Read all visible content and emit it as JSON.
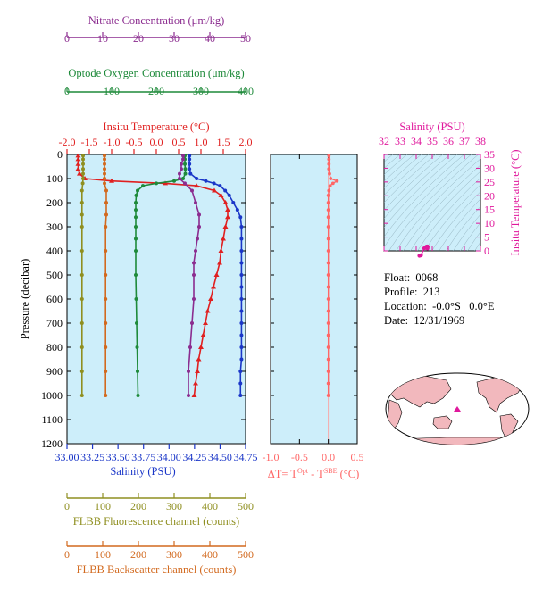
{
  "chart_data": [
    {
      "type": "line",
      "panel": "main-profile",
      "ylabel": "Pressure (decibar)",
      "ylim": [
        1200,
        0
      ],
      "yticks": [
        0,
        100,
        200,
        300,
        400,
        500,
        600,
        700,
        800,
        900,
        1000,
        1100,
        1200
      ],
      "grid": false,
      "axes": {
        "nitrate": {
          "title": "Nitrate Concentration (μm/kg)",
          "lim": [
            0,
            50
          ],
          "ticks": [
            0,
            10,
            20,
            30,
            40,
            50
          ],
          "color": "#8b2c8f"
        },
        "oxygen": {
          "title": "Optode Oxygen Concentration (μm/kg)",
          "lim": [
            0,
            400
          ],
          "ticks": [
            0,
            100,
            200,
            300,
            400
          ],
          "color": "#1e8a3a"
        },
        "temperature": {
          "title": "Insitu Temperature (°C)",
          "lim": [
            -2,
            2
          ],
          "ticks": [
            "-2.0",
            "-1.5",
            "-1.0",
            "-0.5",
            "0.0",
            "0.5",
            "1.0",
            "1.5",
            "2.0"
          ],
          "color": "#e02020"
        },
        "salinity": {
          "title": "Salinity (PSU)",
          "lim": [
            33,
            34.75
          ],
          "ticks": [
            "33.00",
            "33.25",
            "33.50",
            "33.75",
            "34.00",
            "34.25",
            "34.50",
            "34.75"
          ],
          "color": "#1a36c8"
        },
        "fluorescence": {
          "title": "FLBB Fluorescence channel (counts)",
          "lim": [
            0,
            500
          ],
          "ticks": [
            0,
            100,
            200,
            300,
            400,
            500
          ],
          "color": "#8f8f20"
        },
        "backscatter": {
          "title": "FLBB Backscatter channel (counts)",
          "lim": [
            0,
            500
          ],
          "ticks": [
            0,
            100,
            200,
            300,
            400,
            500
          ],
          "color": "#d2691e"
        }
      },
      "series": [
        {
          "axis": "temperature",
          "marker": "triangle",
          "p": [
            5,
            20,
            40,
            60,
            80,
            100,
            110,
            120,
            130,
            150,
            170,
            200,
            230,
            260,
            300,
            350,
            400,
            450,
            500,
            550,
            600,
            650,
            700,
            750,
            800,
            850,
            900,
            950,
            1000
          ],
          "v": [
            -1.75,
            -1.75,
            -1.75,
            -1.75,
            -1.72,
            -1.6,
            -1.0,
            0.2,
            0.9,
            1.3,
            1.45,
            1.55,
            1.6,
            1.6,
            1.55,
            1.5,
            1.45,
            1.42,
            1.35,
            1.28,
            1.22,
            1.15,
            1.1,
            1.05,
            1.0,
            0.95,
            0.92,
            0.88,
            0.85
          ]
        },
        {
          "axis": "salinity",
          "marker": "dot",
          "p": [
            5,
            20,
            40,
            60,
            80,
            100,
            110,
            120,
            130,
            150,
            170,
            200,
            230,
            260,
            300,
            350,
            400,
            450,
            500,
            550,
            600,
            650,
            700,
            750,
            800,
            850,
            900,
            950,
            1000
          ],
          "v": [
            34.2,
            34.2,
            34.2,
            34.2,
            34.21,
            34.27,
            34.36,
            34.44,
            34.5,
            34.55,
            34.59,
            34.63,
            34.67,
            34.7,
            34.71,
            34.71,
            34.71,
            34.71,
            34.71,
            34.71,
            34.71,
            34.71,
            34.71,
            34.71,
            34.71,
            34.71,
            34.7,
            34.7,
            34.7
          ]
        },
        {
          "axis": "oxygen",
          "marker": "dot",
          "p": [
            5,
            20,
            40,
            60,
            80,
            100,
            110,
            120,
            130,
            150,
            170,
            200,
            230,
            260,
            300,
            350,
            400,
            500,
            600,
            700,
            800,
            900,
            1000
          ],
          "v": [
            264,
            264,
            264,
            265,
            265,
            260,
            240,
            200,
            170,
            158,
            155,
            154,
            154,
            154,
            154,
            154,
            154,
            154,
            155,
            156,
            157,
            158,
            159
          ]
        },
        {
          "axis": "nitrate",
          "marker": "dot",
          "p": [
            5,
            20,
            40,
            60,
            80,
            100,
            120,
            150,
            200,
            250,
            300,
            350,
            400,
            450,
            500,
            600,
            700,
            800,
            900,
            1000
          ],
          "v": [
            32.5,
            32.5,
            32,
            32,
            31.5,
            31.5,
            33,
            35,
            36,
            37,
            37,
            36.5,
            36,
            35.5,
            35.5,
            35.5,
            35,
            34.5,
            34,
            34
          ]
        },
        {
          "axis": "fluorescence",
          "marker": "dot",
          "p": [
            5,
            20,
            40,
            60,
            80,
            100,
            120,
            150,
            200,
            250,
            300,
            400,
            500,
            600,
            700,
            800,
            900,
            1000
          ],
          "v": [
            45,
            45,
            45,
            45,
            45,
            45,
            44,
            42,
            42,
            42,
            42,
            42,
            42,
            42,
            42,
            42,
            42,
            42
          ]
        },
        {
          "axis": "backscatter",
          "marker": "dot",
          "p": [
            5,
            20,
            40,
            60,
            80,
            100,
            120,
            150,
            200,
            250,
            300,
            400,
            500,
            600,
            700,
            800,
            900,
            1000
          ],
          "v": [
            105,
            105,
            105,
            105,
            105,
            105,
            105,
            110,
            110,
            110,
            108,
            108,
            108,
            108,
            108,
            108,
            108,
            108
          ]
        }
      ]
    },
    {
      "type": "line",
      "panel": "delta-t",
      "xlabel": "ΔT= T",
      "xlabel_sup1": "Opt",
      "xlabel_mid": " - T",
      "xlabel_sup2": "SBE",
      "xlabel_end": " (°C)",
      "xlim": [
        -1.0,
        0.5
      ],
      "xticks": [
        "-1.0",
        "-0.5",
        "0.0",
        "0.5"
      ],
      "ylim": [
        1200,
        0
      ],
      "color": "#ff6666",
      "series": [
        {
          "p": [
            5,
            20,
            40,
            60,
            80,
            100,
            110,
            120,
            130,
            150,
            170,
            200,
            230,
            260,
            300,
            350,
            400,
            450,
            500,
            550,
            600,
            650,
            700,
            750,
            800,
            850,
            900,
            950,
            1000
          ],
          "v": [
            0.01,
            0.01,
            0.01,
            0.01,
            0.02,
            0.04,
            0.15,
            0.08,
            0.03,
            0.01,
            0.0,
            0.0,
            0.0,
            0.0,
            0.0,
            0.0,
            0.0,
            0.0,
            0.0,
            0.0,
            0.0,
            0.0,
            0.0,
            0.0,
            0.0,
            0.0,
            0.0,
            0.0,
            0.0
          ]
        }
      ]
    },
    {
      "type": "scatter",
      "panel": "ts-diagram",
      "xlabel": "Salinity (PSU)",
      "ylabel": "Insitu Temperature (°C)",
      "xlim": [
        32,
        38
      ],
      "ylim": [
        0,
        35
      ],
      "xticks": [
        32,
        33,
        34,
        35,
        36,
        37,
        38
      ],
      "yticks": [
        0,
        5,
        10,
        15,
        20,
        25,
        30,
        35
      ],
      "color": "#e0189c",
      "series": [
        {
          "x": [
            34.2,
            34.3,
            34.5,
            34.6,
            34.65,
            34.7,
            34.71,
            34.7,
            34.7
          ],
          "y": [
            -1.75,
            -1.6,
            0.9,
            1.3,
            1.55,
            1.6,
            1.5,
            1.2,
            0.85
          ]
        }
      ]
    }
  ],
  "info": {
    "float": "Float:  0068",
    "profile": "Profile:  213",
    "location": "Location:  -0.0°S   0.0°E",
    "date": "Date:  12/31/1969"
  },
  "colors": {
    "panel_bg": "#cdeefa",
    "land": "#f2b8bd",
    "ocean": "#ffffff",
    "marker": "#e0189c"
  }
}
